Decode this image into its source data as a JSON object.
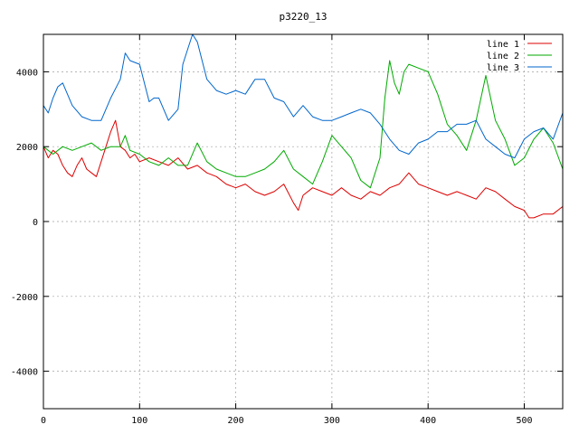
{
  "chart_data": {
    "type": "line",
    "title": "p3220_13",
    "xlabel": "",
    "ylabel": "",
    "xlim": [
      0,
      540
    ],
    "ylim": [
      -5000,
      5000
    ],
    "x_ticks": [
      0,
      100,
      200,
      300,
      400,
      500
    ],
    "y_ticks": [
      -4000,
      -2000,
      0,
      2000,
      4000
    ],
    "grid": true,
    "legend_position": "top-right",
    "series": [
      {
        "name": "line 1",
        "color": "#dd0000",
        "x": [
          0,
          5,
          10,
          15,
          20,
          25,
          30,
          35,
          40,
          45,
          50,
          55,
          60,
          65,
          70,
          75,
          80,
          85,
          90,
          95,
          100,
          110,
          120,
          130,
          140,
          150,
          160,
          170,
          180,
          190,
          200,
          210,
          220,
          230,
          240,
          250,
          260,
          265,
          270,
          280,
          290,
          300,
          310,
          320,
          330,
          340,
          350,
          360,
          370,
          380,
          390,
          400,
          410,
          420,
          430,
          440,
          450,
          460,
          470,
          480,
          490,
          500,
          505,
          510,
          520,
          530,
          540
        ],
        "values": [
          2000,
          1700,
          1900,
          1800,
          1500,
          1300,
          1200,
          1500,
          1700,
          1400,
          1300,
          1200,
          1600,
          2000,
          2400,
          2700,
          2000,
          1900,
          1700,
          1800,
          1600,
          1700,
          1600,
          1500,
          1700,
          1400,
          1500,
          1300,
          1200,
          1000,
          900,
          1000,
          800,
          700,
          800,
          1000,
          500,
          300,
          700,
          900,
          800,
          700,
          900,
          700,
          600,
          800,
          700,
          900,
          1000,
          1300,
          1000,
          900,
          800,
          700,
          800,
          700,
          600,
          900,
          800,
          600,
          400,
          300,
          100,
          100,
          200,
          200,
          400
        ]
      },
      {
        "name": "line 2",
        "color": "#00aa00",
        "x": [
          0,
          10,
          20,
          30,
          40,
          50,
          60,
          70,
          80,
          85,
          90,
          100,
          110,
          120,
          130,
          140,
          150,
          160,
          170,
          180,
          190,
          200,
          210,
          220,
          230,
          240,
          250,
          260,
          270,
          280,
          290,
          300,
          310,
          320,
          330,
          340,
          350,
          355,
          360,
          365,
          370,
          375,
          380,
          390,
          400,
          410,
          420,
          430,
          440,
          450,
          460,
          470,
          480,
          490,
          500,
          510,
          520,
          530,
          540
        ],
        "values": [
          2000,
          1800,
          2000,
          1900,
          2000,
          2100,
          1900,
          2000,
          2000,
          2300,
          1900,
          1800,
          1600,
          1500,
          1700,
          1500,
          1500,
          2100,
          1600,
          1400,
          1300,
          1200,
          1200,
          1300,
          1400,
          1600,
          1900,
          1400,
          1200,
          1000,
          1600,
          2300,
          2000,
          1700,
          1100,
          900,
          1700,
          3300,
          4300,
          3700,
          3400,
          4000,
          4200,
          4100,
          4000,
          3400,
          2600,
          2300,
          1900,
          2700,
          3900,
          2700,
          2200,
          1500,
          1700,
          2200,
          2500,
          2100,
          1400
        ]
      },
      {
        "name": "line 3",
        "color": "#0066cc",
        "x": [
          0,
          5,
          10,
          15,
          20,
          30,
          40,
          50,
          60,
          70,
          80,
          85,
          90,
          100,
          110,
          115,
          120,
          130,
          140,
          145,
          150,
          155,
          160,
          170,
          180,
          190,
          200,
          210,
          220,
          230,
          240,
          250,
          260,
          270,
          280,
          290,
          300,
          310,
          320,
          330,
          340,
          350,
          360,
          370,
          380,
          390,
          400,
          410,
          420,
          430,
          440,
          450,
          460,
          470,
          480,
          490,
          500,
          510,
          520,
          530,
          540
        ],
        "values": [
          3100,
          2900,
          3300,
          3600,
          3700,
          3100,
          2800,
          2700,
          2700,
          3300,
          3800,
          4500,
          4300,
          4200,
          3200,
          3300,
          3300,
          2700,
          3000,
          4200,
          4600,
          5000,
          4800,
          3800,
          3500,
          3400,
          3500,
          3400,
          3800,
          3800,
          3300,
          3200,
          2800,
          3100,
          2800,
          2700,
          2700,
          2800,
          2900,
          3000,
          2900,
          2600,
          2200,
          1900,
          1800,
          2100,
          2200,
          2400,
          2400,
          2600,
          2600,
          2700,
          2200,
          2000,
          1800,
          1700,
          2200,
          2400,
          2500,
          2200,
          2900
        ]
      }
    ]
  }
}
